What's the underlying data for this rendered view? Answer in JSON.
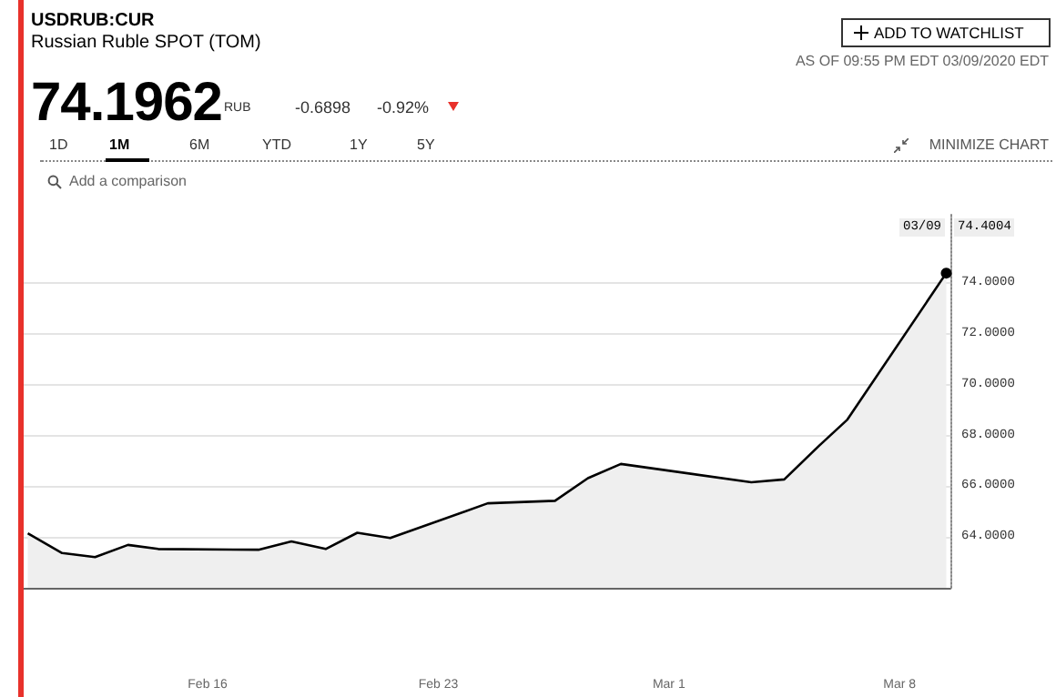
{
  "chart_data": {
    "type": "area",
    "title": "USDRUB:CUR",
    "subtitle": "Russian Ruble SPOT (TOM)",
    "annotations": [
      "74.1962",
      "RUB",
      "-0.6898",
      "-0.92%",
      "ADD TO WATCHLIST",
      "AS OF 09:55 PM EDT 03/09/2020 EDT",
      "1D",
      "1M",
      "6M",
      "YTD",
      "1Y",
      "5Y",
      "MINIMIZE CHART",
      "Add a comparison",
      "03/09",
      "74.4004"
    ],
    "x": [
      "2020-02-10T13:00",
      "2020-02-11T14:00",
      "2020-02-12T14:00",
      "2020-02-13T14:00",
      "2020-02-14T12:00",
      "2020-02-17T13:00",
      "2020-02-18T13:00",
      "2020-02-19T14:00",
      "2020-02-20T13:00",
      "2020-02-21T13:00",
      "2020-02-24T12:00",
      "2020-02-26T13:00",
      "2020-02-27T13:00",
      "2020-02-28T13:00",
      "2020-03-03T12:00",
      "2020-03-04T12:00",
      "2020-03-05T13:00",
      "2020-03-06T10:00",
      "2020-03-09T10:00"
    ],
    "series": [
      {
        "color": "#000000",
        "values": [
          64.15,
          63.37,
          63.21,
          63.69,
          63.53,
          63.5,
          63.83,
          63.53,
          64.17,
          63.96,
          65.33,
          65.43,
          66.32,
          66.88,
          66.16,
          66.27,
          67.58,
          68.63,
          74.4004
        ]
      }
    ],
    "xlim": [
      "2020-02-10T10:00",
      "2020-03-09T13:00"
    ],
    "xticks": [
      {
        "value": "2020-02-16",
        "label": "Feb 16"
      },
      {
        "value": "2020-02-23",
        "label": "Feb 23"
      },
      {
        "value": "2020-03-01",
        "label": "Mar 1"
      },
      {
        "value": "2020-03-08",
        "label": "Mar 8"
      }
    ],
    "ylim": [
      62,
      76.7
    ],
    "yticks": [
      {
        "value": 64,
        "label": "64.0000"
      },
      {
        "value": 66,
        "label": "66.0000"
      },
      {
        "value": 68,
        "label": "68.0000"
      },
      {
        "value": 70,
        "label": "70.0000"
      },
      {
        "value": 72,
        "label": "72.0000"
      },
      {
        "value": 74,
        "label": "74.0000"
      }
    ],
    "grid": "y"
  }
}
